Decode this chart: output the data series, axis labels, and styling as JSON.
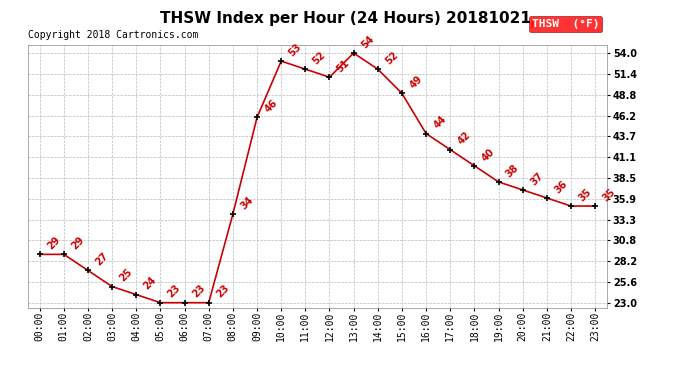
{
  "title": "THSW Index per Hour (24 Hours) 20181021",
  "copyright": "Copyright 2018 Cartronics.com",
  "legend_label": "THSW  (°F)",
  "hours": [
    0,
    1,
    2,
    3,
    4,
    5,
    6,
    7,
    8,
    9,
    10,
    11,
    12,
    13,
    14,
    15,
    16,
    17,
    18,
    19,
    20,
    21,
    22,
    23
  ],
  "values": [
    29,
    29,
    27,
    25,
    24,
    23,
    23,
    23,
    34,
    46,
    53,
    52,
    51,
    54,
    52,
    49,
    44,
    42,
    40,
    38,
    37,
    36,
    35,
    35
  ],
  "x_labels": [
    "00:00",
    "01:00",
    "02:00",
    "03:00",
    "04:00",
    "05:00",
    "06:00",
    "07:00",
    "08:00",
    "09:00",
    "10:00",
    "11:00",
    "12:00",
    "13:00",
    "14:00",
    "15:00",
    "16:00",
    "17:00",
    "18:00",
    "19:00",
    "20:00",
    "21:00",
    "22:00",
    "23:00"
  ],
  "y_ticks": [
    23.0,
    25.6,
    28.2,
    30.8,
    33.3,
    35.9,
    38.5,
    41.1,
    43.7,
    46.2,
    48.8,
    51.4,
    54.0
  ],
  "ylim": [
    22.4,
    55.0
  ],
  "line_color": "#cc0000",
  "marker_color": "#000000",
  "label_color": "#cc0000",
  "bg_color": "#ffffff",
  "grid_color": "#bbbbbb",
  "title_fontsize": 11,
  "copyright_fontsize": 7,
  "label_fontsize": 7,
  "tick_fontsize": 7
}
